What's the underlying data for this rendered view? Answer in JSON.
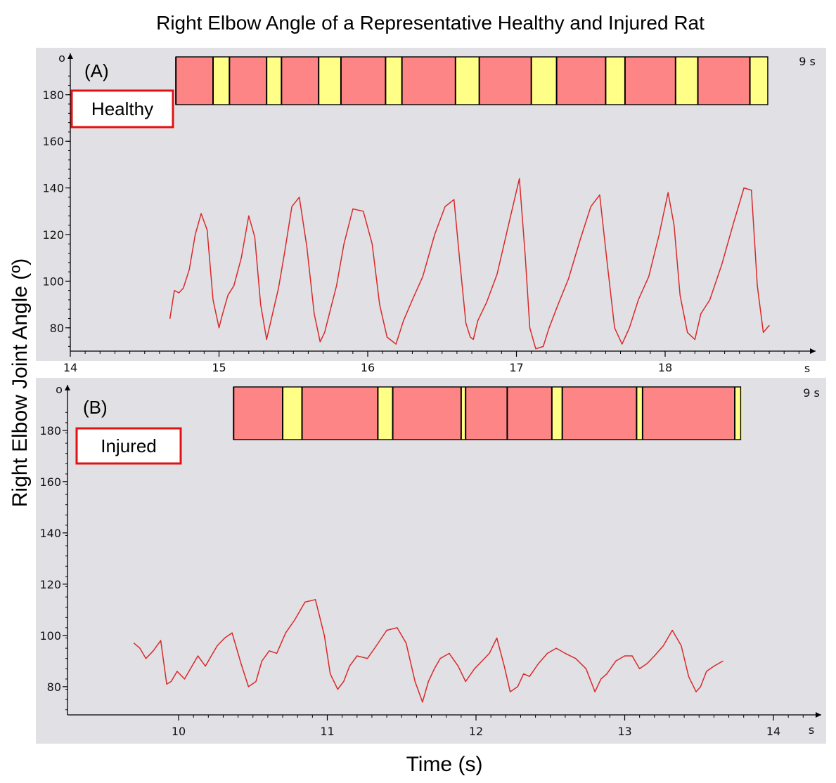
{
  "title": "Right Elbow Angle of a Representative Healthy and Injured Rat",
  "xlabel": "Time (s)",
  "ylabel": "Right Elbow Joint Angle (º)",
  "colors": {
    "trace": "#d92a2a",
    "panel_bg": "#e1e0e4",
    "stance": "#fe8585",
    "swing": "#ffff88",
    "badge_border": "#e21212",
    "axis": "#000000"
  },
  "chart_data": [
    {
      "type": "line",
      "panel_label": "(A)",
      "condition": "Healthy",
      "y_unit_symbol": "o",
      "x_unit": "s",
      "duration_label": "9 s",
      "x_ticks": [
        "14",
        "15",
        "16",
        "17",
        "18"
      ],
      "y_ticks": [
        "80",
        "100",
        "120",
        "140",
        "160",
        "180"
      ],
      "xlim": [
        14,
        19.0
      ],
      "ylim": [
        70,
        190
      ],
      "grid": false,
      "series": [
        {
          "x": [
            14.67,
            14.7,
            14.73,
            14.76,
            14.8,
            14.84,
            14.88,
            14.92,
            14.96,
            15.0,
            15.02,
            15.06,
            15.1,
            15.15,
            15.2,
            15.24,
            15.28,
            15.32,
            15.36,
            15.4,
            15.44,
            15.49,
            15.54,
            15.59,
            15.64,
            15.68,
            15.71,
            15.75,
            15.79,
            15.84,
            15.9,
            15.97,
            16.03,
            16.08,
            16.13,
            16.19,
            16.24,
            16.3,
            16.37,
            16.45,
            16.52,
            16.58,
            16.62,
            16.66,
            16.69,
            16.71,
            16.74,
            16.8,
            16.87,
            16.95,
            17.02,
            17.06,
            17.09,
            17.13,
            17.18,
            17.22,
            17.28,
            17.35,
            17.43,
            17.5,
            17.56,
            17.61,
            17.66,
            17.71,
            17.76,
            17.82,
            17.89,
            17.96,
            18.02,
            18.06,
            18.1,
            18.15,
            18.2,
            18.24,
            18.3,
            18.38,
            18.46,
            18.53,
            18.58,
            18.62,
            18.66,
            18.7
          ],
          "values": [
            84,
            96,
            95,
            97,
            105,
            120,
            129,
            122,
            92,
            80,
            85,
            94,
            98,
            110,
            128,
            119,
            90,
            75,
            86,
            97,
            112,
            132,
            136,
            115,
            86,
            74,
            78,
            88,
            98,
            116,
            131,
            130,
            116,
            90,
            76,
            73,
            83,
            92,
            102,
            120,
            132,
            135,
            108,
            82,
            76,
            75,
            83,
            91,
            103,
            125,
            144,
            110,
            80,
            71,
            72,
            80,
            90,
            101,
            118,
            132,
            137,
            108,
            80,
            73,
            80,
            92,
            102,
            120,
            138,
            124,
            94,
            78,
            75,
            86,
            92,
            107,
            125,
            140,
            139,
            98,
            78,
            81
          ]
        }
      ],
      "gait_bar": {
        "t_start": 14.71,
        "t_end": 18.69,
        "segments": [
          {
            "phase": "stance",
            "duration": 0.25
          },
          {
            "phase": "swing",
            "duration": 0.11
          },
          {
            "phase": "stance",
            "duration": 0.25
          },
          {
            "phase": "swing",
            "duration": 0.1
          },
          {
            "phase": "stance",
            "duration": 0.25
          },
          {
            "phase": "swing",
            "duration": 0.15
          },
          {
            "phase": "stance",
            "duration": 0.3
          },
          {
            "phase": "swing",
            "duration": 0.11
          },
          {
            "phase": "stance",
            "duration": 0.36
          },
          {
            "phase": "swing",
            "duration": 0.16
          },
          {
            "phase": "stance",
            "duration": 0.35
          },
          {
            "phase": "swing",
            "duration": 0.17
          },
          {
            "phase": "stance",
            "duration": 0.33
          },
          {
            "phase": "swing",
            "duration": 0.13
          },
          {
            "phase": "stance",
            "duration": 0.34
          },
          {
            "phase": "swing",
            "duration": 0.15
          },
          {
            "phase": "stance",
            "duration": 0.35
          },
          {
            "phase": "swing",
            "duration": 0.12
          }
        ]
      }
    },
    {
      "type": "line",
      "panel_label": "(B)",
      "condition": "Injured",
      "y_unit_symbol": "o",
      "x_unit": "s",
      "duration_label": "9 s",
      "x_ticks": [
        "10",
        "11",
        "12",
        "13",
        "14"
      ],
      "y_ticks": [
        "80",
        "100",
        "120",
        "140",
        "160",
        "180"
      ],
      "xlim": [
        9.2,
        14.25
      ],
      "ylim": [
        69,
        190
      ],
      "grid": false,
      "series": [
        {
          "x": [
            9.7,
            9.74,
            9.78,
            9.83,
            9.88,
            9.92,
            9.95,
            9.99,
            10.04,
            10.09,
            10.13,
            10.18,
            10.22,
            10.26,
            10.31,
            10.36,
            10.42,
            10.47,
            10.52,
            10.56,
            10.61,
            10.66,
            10.72,
            10.78,
            10.85,
            10.92,
            10.98,
            11.02,
            11.07,
            11.11,
            11.15,
            11.2,
            11.27,
            11.33,
            11.4,
            11.47,
            11.53,
            11.59,
            11.64,
            11.68,
            11.72,
            11.76,
            11.82,
            11.88,
            11.93,
            11.99,
            12.04,
            12.09,
            12.14,
            12.19,
            12.23,
            12.28,
            12.32,
            12.36,
            12.42,
            12.48,
            12.54,
            12.6,
            12.67,
            12.74,
            12.8,
            12.84,
            12.88,
            12.94,
            13.0,
            13.05,
            13.1,
            13.15,
            13.2,
            13.26,
            13.32,
            13.38,
            13.43,
            13.48,
            13.51,
            13.55,
            13.6,
            13.66
          ],
          "values": [
            97,
            95,
            91,
            94,
            98,
            81,
            82,
            86,
            83,
            88,
            92,
            88,
            92,
            96,
            99,
            101,
            89,
            80,
            82,
            90,
            94,
            93,
            101,
            106,
            113,
            114,
            100,
            85,
            79,
            82,
            88,
            92,
            91,
            96,
            102,
            103,
            97,
            82,
            74,
            82,
            87,
            91,
            93,
            88,
            82,
            87,
            90,
            93,
            99,
            88,
            78,
            80,
            85,
            84,
            89,
            93,
            95,
            93,
            91,
            87,
            78,
            83,
            85,
            90,
            92,
            92,
            87,
            89,
            92,
            96,
            102,
            96,
            84,
            78,
            80,
            86,
            88,
            90
          ]
        }
      ],
      "gait_bar": {
        "t_start": 10.37,
        "t_end": 13.78,
        "segments": [
          {
            "phase": "stance",
            "duration": 0.33
          },
          {
            "phase": "swing",
            "duration": 0.13
          },
          {
            "phase": "stance",
            "duration": 0.51
          },
          {
            "phase": "swing",
            "duration": 0.1
          },
          {
            "phase": "stance",
            "duration": 0.46
          },
          {
            "phase": "swing",
            "duration": 0.03
          },
          {
            "phase": "stance",
            "duration": 0.28
          },
          {
            "phase": "stance",
            "duration": 0.3
          },
          {
            "phase": "swing",
            "duration": 0.07
          },
          {
            "phase": "stance",
            "duration": 0.5
          },
          {
            "phase": "swing",
            "duration": 0.04
          },
          {
            "phase": "stance",
            "duration": 0.62
          },
          {
            "phase": "swing",
            "duration": 0.05
          }
        ]
      }
    }
  ]
}
